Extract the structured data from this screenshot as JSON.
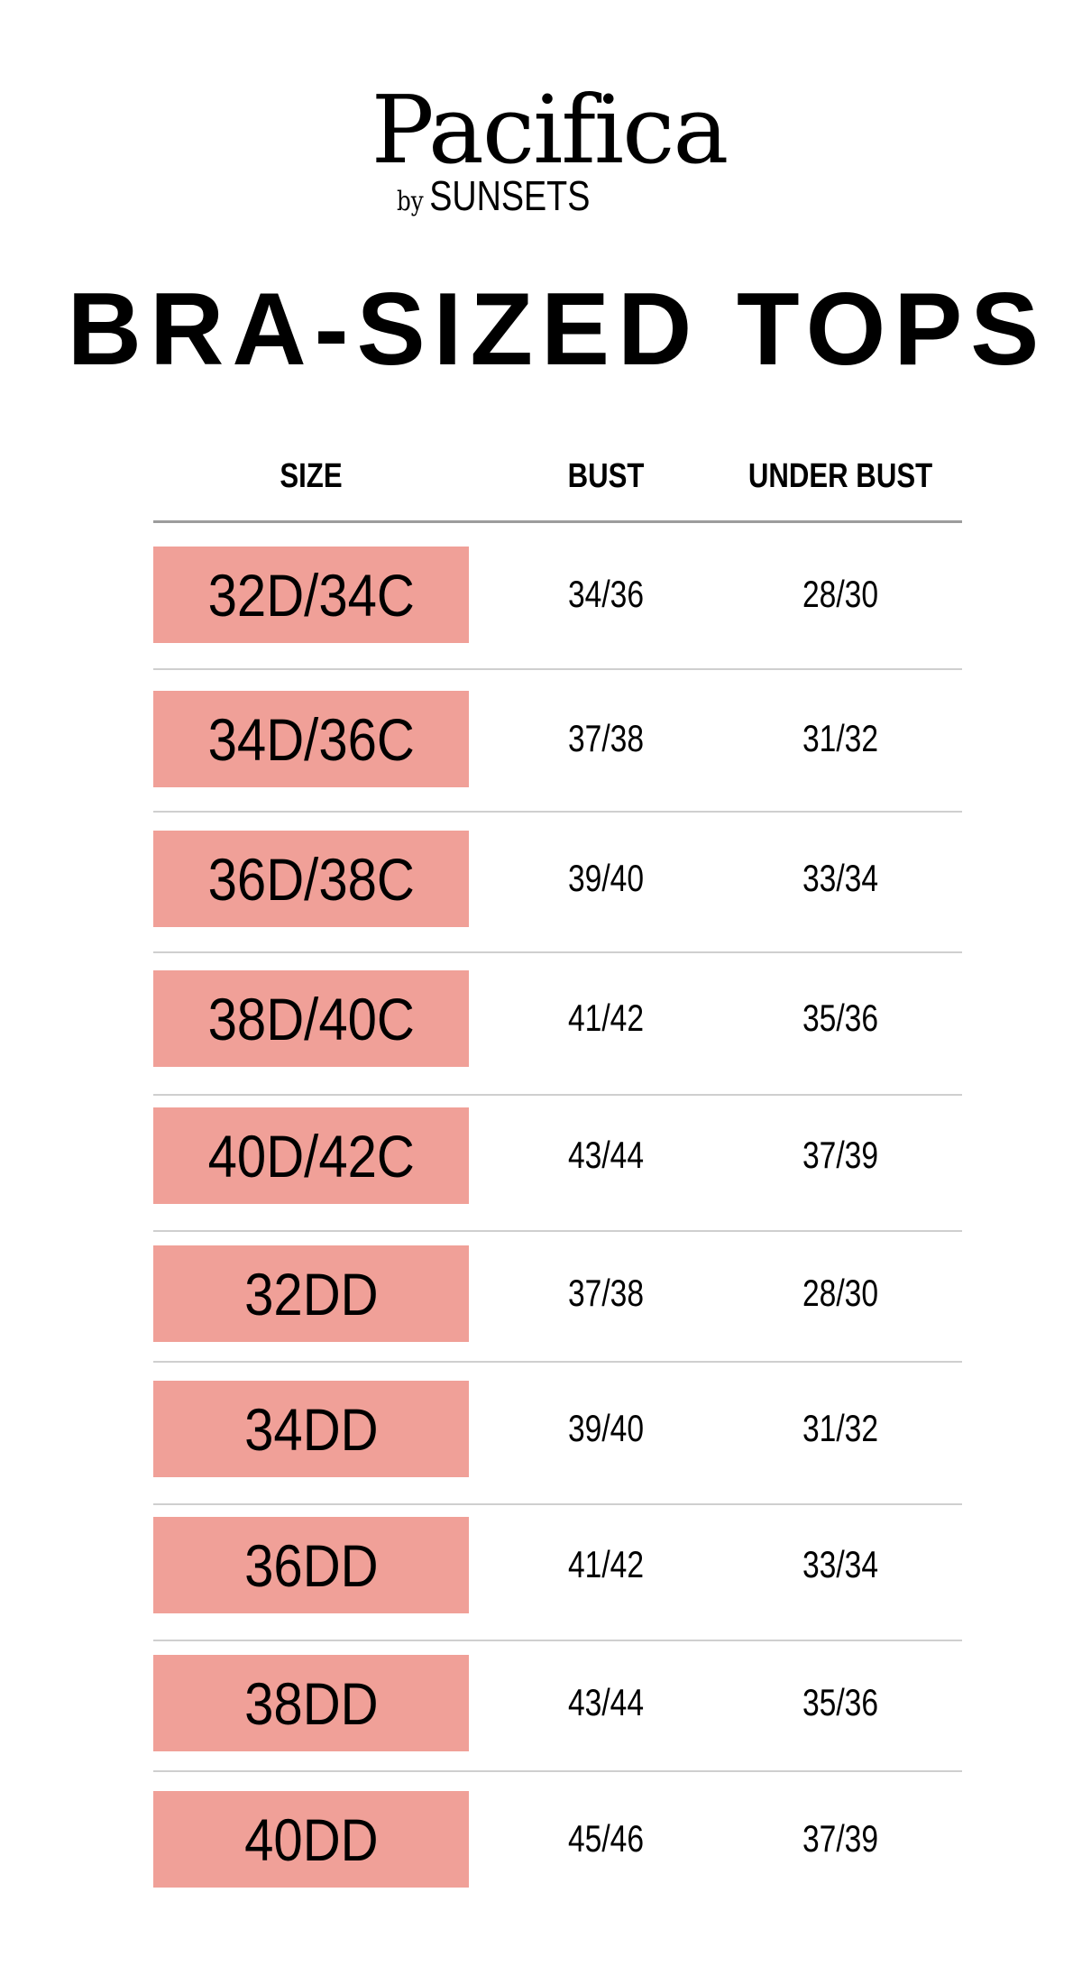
{
  "brand": {
    "name": "Pacifica",
    "by": "by",
    "sub": "SUNSETS"
  },
  "title": "BRA-SIZED TOPS",
  "colors": {
    "size_box": "#f0a098",
    "header_rule": "#9c9c9c",
    "row_rule": "#cfcfcf"
  },
  "table": {
    "headers": {
      "size": "SIZE",
      "bust": "BUST",
      "under_bust": "UNDER BUST"
    },
    "rows": [
      {
        "size": "32D/34C",
        "bust": "34/36",
        "under_bust": "28/30"
      },
      {
        "size": "34D/36C",
        "bust": "37/38",
        "under_bust": "31/32"
      },
      {
        "size": "36D/38C",
        "bust": "39/40",
        "under_bust": "33/34"
      },
      {
        "size": "38D/40C",
        "bust": "41/42",
        "under_bust": "35/36"
      },
      {
        "size": "40D/42C",
        "bust": "43/44",
        "under_bust": "37/39"
      },
      {
        "size": "32DD",
        "bust": "37/38",
        "under_bust": "28/30"
      },
      {
        "size": "34DD",
        "bust": "39/40",
        "under_bust": "31/32"
      },
      {
        "size": "36DD",
        "bust": "41/42",
        "under_bust": "33/34"
      },
      {
        "size": "38DD",
        "bust": "43/44",
        "under_bust": "35/36"
      },
      {
        "size": "40DD",
        "bust": "45/46",
        "under_bust": "37/39"
      }
    ]
  }
}
